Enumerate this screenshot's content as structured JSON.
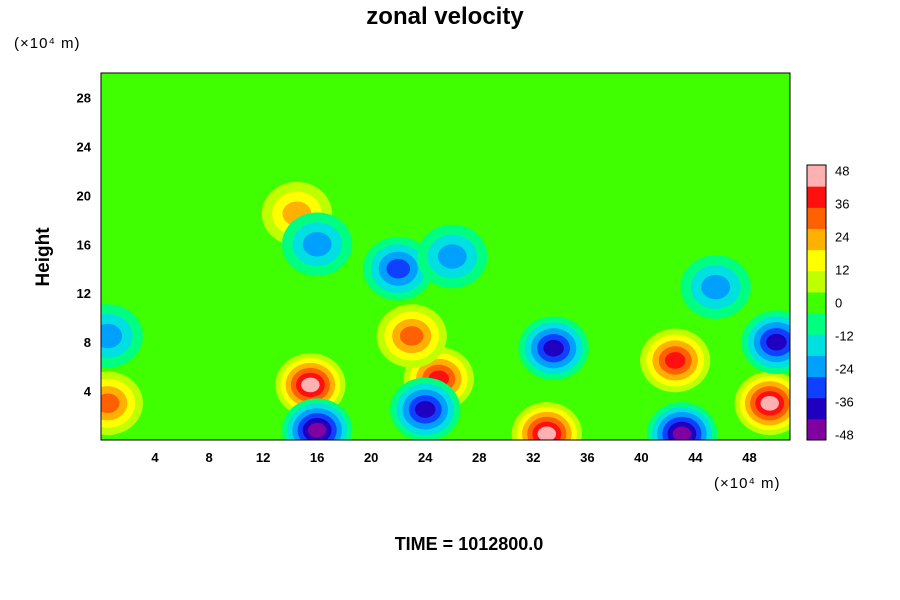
{
  "chart_data": {
    "type": "heatmap",
    "title": "zonal velocity",
    "ylabel": "Height",
    "y_unit": "(×10⁴ m)",
    "x_unit": "(×10⁴ m)",
    "footer": "TIME = 1012800.0",
    "xlim": [
      0,
      51
    ],
    "ylim": [
      0,
      30
    ],
    "xticks": [
      4,
      8,
      12,
      16,
      20,
      24,
      28,
      32,
      36,
      40,
      44,
      48
    ],
    "yticks": [
      4,
      8,
      12,
      16,
      20,
      24,
      28
    ],
    "colorbar": {
      "range": [
        -50,
        50
      ],
      "ticks": [
        48,
        36,
        24,
        12,
        0,
        -12,
        -24,
        -36,
        -48
      ],
      "colors": [
        "#8000a0",
        "#2000c0",
        "#1040ff",
        "#00a0ff",
        "#00e0e0",
        "#00ff80",
        "#40ff00",
        "#c0ff00",
        "#ffff00",
        "#ffb000",
        "#ff6000",
        "#ff1010",
        "#ffb0b0"
      ]
    },
    "features": [
      {
        "x": 15.5,
        "y": 4.5,
        "value": 48,
        "desc": "strong positive"
      },
      {
        "x": 25.0,
        "y": 5.0,
        "value": 40
      },
      {
        "x": 23.0,
        "y": 8.5,
        "value": 28
      },
      {
        "x": 33.0,
        "y": 0.5,
        "value": 48
      },
      {
        "x": 42.5,
        "y": 6.5,
        "value": 36
      },
      {
        "x": 49.5,
        "y": 3.0,
        "value": 44
      },
      {
        "x": 0.5,
        "y": 3.0,
        "value": 30
      },
      {
        "x": 14.5,
        "y": 18.5,
        "value": 26
      },
      {
        "x": 16.0,
        "y": 0.8,
        "value": -46
      },
      {
        "x": 24.0,
        "y": 2.5,
        "value": -40
      },
      {
        "x": 43.0,
        "y": 0.5,
        "value": -45
      },
      {
        "x": 33.5,
        "y": 7.5,
        "value": -36
      },
      {
        "x": 50.0,
        "y": 8.0,
        "value": -38
      },
      {
        "x": 0.5,
        "y": 8.5,
        "value": -26
      },
      {
        "x": 22.0,
        "y": 14.0,
        "value": -28
      },
      {
        "x": 26.0,
        "y": 15.0,
        "value": -24
      },
      {
        "x": 16.0,
        "y": 16.0,
        "value": -22
      },
      {
        "x": 45.5,
        "y": 12.5,
        "value": -22
      }
    ]
  }
}
